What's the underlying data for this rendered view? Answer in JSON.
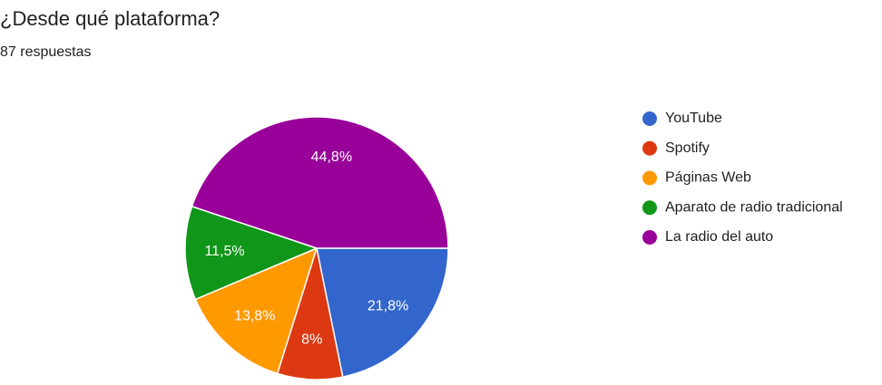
{
  "chart_data": {
    "type": "pie",
    "title": "¿Desde qué plataforma?",
    "subtitle": "87 respuestas",
    "categories": [
      "YouTube",
      "Spotify",
      "Páginas Web",
      "Aparato de radio tradicional",
      "La radio del auto"
    ],
    "values": [
      21.8,
      8,
      13.8,
      11.5,
      44.8
    ],
    "value_labels": [
      "21,8%",
      "8%",
      "13,8%",
      "11,5%",
      "44,8%"
    ],
    "colors": [
      "#3366cc",
      "#dc3912",
      "#ff9900",
      "#109618",
      "#990099"
    ],
    "legend": "right"
  }
}
